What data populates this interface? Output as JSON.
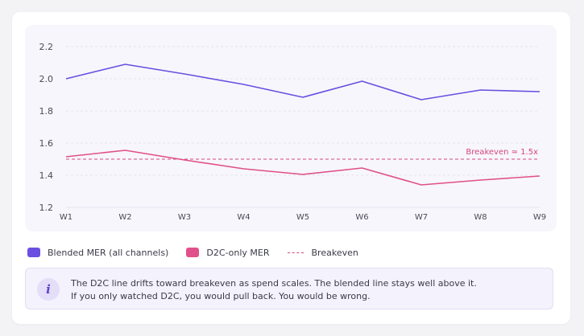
{
  "chart_data": {
    "type": "line",
    "x": [
      "W1",
      "W2",
      "W3",
      "W4",
      "W5",
      "W6",
      "W7",
      "W8",
      "W9"
    ],
    "ylim": [
      1.2,
      2.2
    ],
    "yticks": [
      "2.2",
      "2.0",
      "1.8",
      "1.6",
      "1.4",
      "1.2"
    ],
    "grid": true,
    "series": [
      {
        "name": "Blended MER (all channels)",
        "color": "#6a4fe0",
        "values": [
          2.0,
          2.09,
          2.03,
          1.965,
          1.885,
          1.985,
          1.87,
          1.93,
          1.92
        ]
      },
      {
        "name": "D2C-only MER",
        "color": "#e0508a",
        "values": [
          1.515,
          1.555,
          1.495,
          1.44,
          1.405,
          1.445,
          1.34,
          1.37,
          1.395
        ]
      }
    ],
    "reference_line": {
      "name": "Breakeven",
      "value": 1.5,
      "label": "Breakeven ≈ 1.5x",
      "color": "#d6457e",
      "style": "dashed"
    },
    "legend_position": "bottom"
  },
  "note": {
    "icon": "info-icon",
    "line1": "The D2C line drifts toward breakeven as spend scales. The blended line stays well above it.",
    "line2": "If you only watched D2C, you would pull back. You would be wrong."
  }
}
